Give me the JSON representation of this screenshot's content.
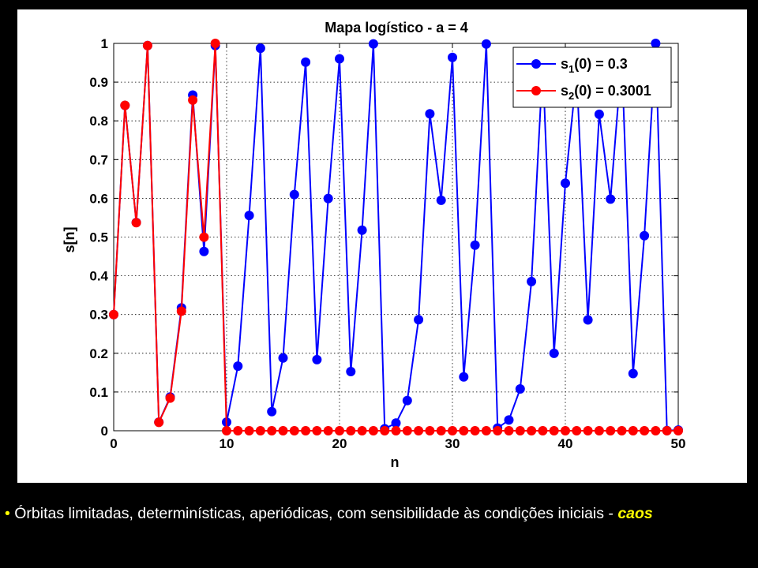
{
  "chart_data": {
    "type": "line",
    "title": "Mapa logístico - a = 4",
    "xlabel": "n",
    "ylabel": "s[n]",
    "xlim": [
      0,
      50
    ],
    "ylim": [
      0,
      1
    ],
    "xticks": [
      "0",
      "10",
      "20",
      "30",
      "40",
      "50"
    ],
    "yticks": [
      "0",
      "0.1",
      "0.2",
      "0.3",
      "0.4",
      "0.5",
      "0.6",
      "0.7",
      "0.8",
      "0.9",
      "1"
    ],
    "grid": true,
    "legend_position": "top-right",
    "x": [
      0,
      1,
      2,
      3,
      4,
      5,
      6,
      7,
      8,
      9,
      10,
      11,
      12,
      13,
      14,
      15,
      16,
      17,
      18,
      19,
      20,
      21,
      22,
      23,
      24,
      25,
      26,
      27,
      28,
      29,
      30,
      31,
      32,
      33,
      34,
      35,
      36,
      37,
      38,
      39,
      40,
      41,
      42,
      43,
      44,
      45,
      46,
      47,
      48,
      49,
      50
    ],
    "series": [
      {
        "name_main": "s",
        "name_sub": "1",
        "name_rest": "(0) = 0.3",
        "color": "#0000ff",
        "values": [
          0.3,
          0.84,
          0.5376,
          0.9944,
          0.0222,
          0.0869,
          0.3173,
          0.8665,
          0.4627,
          0.9944,
          0.0222,
          0.1668,
          0.5558,
          0.9875,
          0.0494,
          0.1877,
          0.6098,
          0.9518,
          0.1836,
          0.5996,
          0.9602,
          0.1528,
          0.5179,
          0.9987,
          0.005,
          0.0198,
          0.0778,
          0.2868,
          0.8182,
          0.595,
          0.9639,
          0.1392,
          0.4792,
          0.9983,
          0.007,
          0.0278,
          0.1079,
          0.3851,
          0.9473,
          0.1997,
          0.6392,
          0.9225,
          0.2861,
          0.817,
          0.598,
          0.9616,
          0.1477,
          0.5036,
          0.9999,
          0.0005,
          0.0018
        ]
      },
      {
        "name_main": "s",
        "name_sub": "2",
        "name_rest": "(0) = 0.3001",
        "color": "#ff0000",
        "values": [
          0.3001,
          0.8402,
          0.537,
          0.9946,
          0.0215,
          0.0843,
          0.3086,
          0.8536,
          0.4998,
          1.0,
          0.0,
          0.0,
          0.0,
          0.0,
          0.0,
          0.0,
          0.0,
          0.0,
          0.0,
          0.0,
          0.0,
          0.0,
          0.0,
          0.0,
          0.0,
          0.0,
          0.0,
          0.0,
          0.0,
          0.0,
          0.0,
          0.0,
          0.0,
          0.0,
          0.0,
          0.0,
          0.0,
          0.0,
          0.0,
          0.0,
          0.0,
          0.0,
          0.0,
          0.0,
          0.0,
          0.0,
          0.0,
          0.0,
          0.0,
          0.0,
          0.0
        ]
      }
    ]
  },
  "bullet": {
    "marker": "•",
    "text": " Órbitas limitadas, determinísticas, aperiódicas, com sensibilidade às condições iniciais - ",
    "emphasis": "caos"
  }
}
